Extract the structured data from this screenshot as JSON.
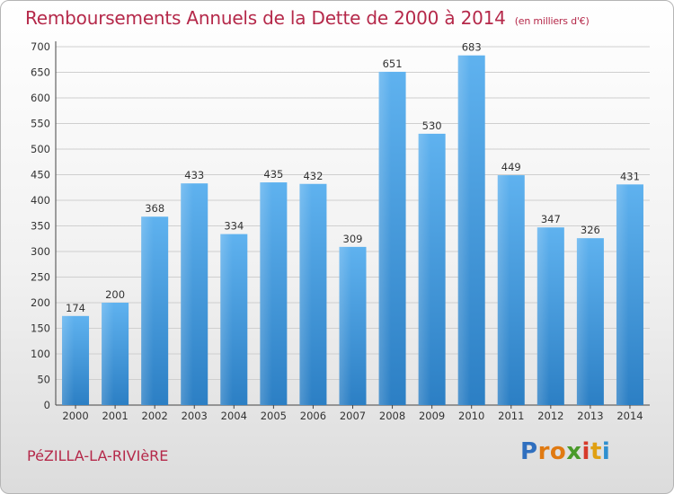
{
  "header": {
    "title": "Remboursements Annuels de la Dette de 2000 à 2014",
    "unit": "(en milliers d'€)"
  },
  "footer": {
    "commune": "PéZILLA-LA-RIVIèRE",
    "logo_letters": [
      "P",
      "r",
      "o",
      "x",
      "i",
      "t",
      "i"
    ],
    "logo_colors": [
      "#2f6fbf",
      "#e07a12",
      "#e07a12",
      "#4a9a2a",
      "#d63a2a",
      "#e0a012",
      "#2f8fcf"
    ]
  },
  "chart_data": {
    "type": "bar",
    "categories": [
      "2000",
      "2001",
      "2002",
      "2003",
      "2004",
      "2005",
      "2006",
      "2007",
      "2008",
      "2009",
      "2010",
      "2011",
      "2012",
      "2013",
      "2014"
    ],
    "values": [
      174,
      200,
      368,
      433,
      334,
      435,
      432,
      309,
      651,
      530,
      683,
      449,
      347,
      326,
      431
    ],
    "ylim": [
      0,
      700
    ],
    "yticks": [
      0,
      50,
      100,
      150,
      200,
      250,
      300,
      350,
      400,
      450,
      500,
      550,
      600,
      650,
      700
    ],
    "grid": true,
    "bar_color": "#3a93d8"
  }
}
